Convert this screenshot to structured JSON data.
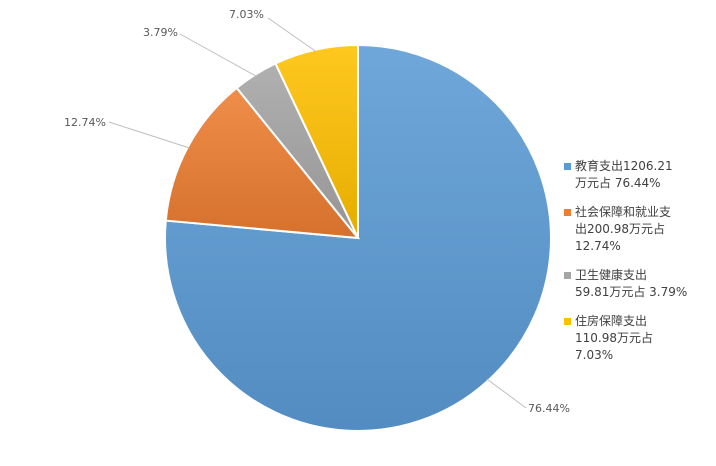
{
  "chart_data": {
    "type": "pie",
    "slices": [
      {
        "label": "教育支出1206.21\n万元占 76.44%",
        "value": 76.44,
        "pct_label": "76.44%",
        "color": "#5B9BD5"
      },
      {
        "label": "社会保障和就业支\n出200.98万元占\n12.74%",
        "value": 12.74,
        "pct_label": "12.74%",
        "color": "#ED7D31"
      },
      {
        "label": "卫生健康支出\n59.81万元占 3.79%",
        "value": 3.79,
        "pct_label": "3.79%",
        "color": "#A5A5A5"
      },
      {
        "label": "住房保障支出\n110.98万元占\n7.03%",
        "value": 7.03,
        "pct_label": "7.03%",
        "color": "#FFC000"
      }
    ],
    "legend_position": "right"
  }
}
